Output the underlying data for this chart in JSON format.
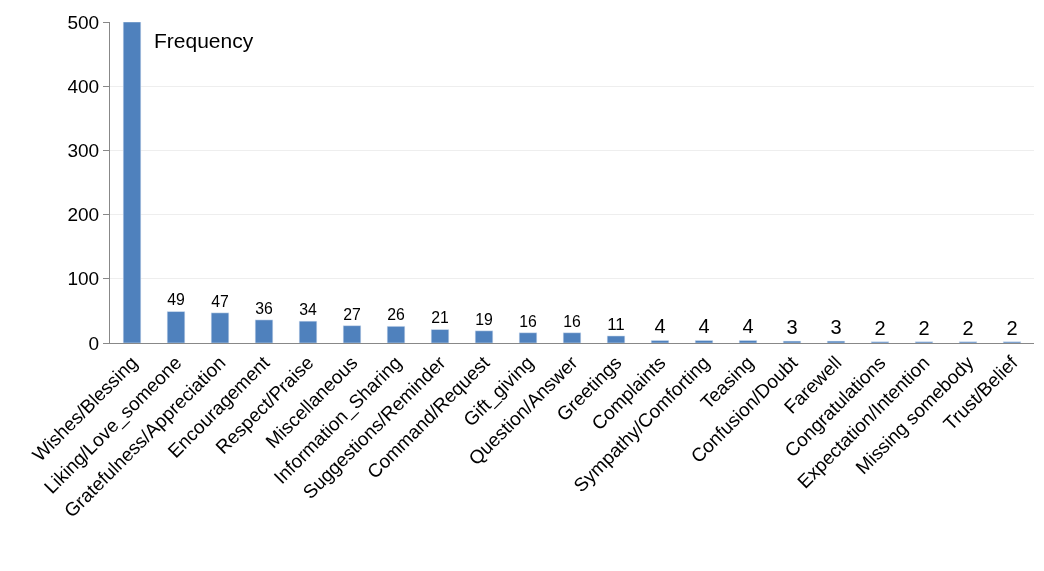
{
  "chart_data": {
    "type": "bar",
    "categories": [
      "Wishes/Blessing",
      "Liking/Love_someone",
      "Gratefulness/Appreciation",
      "Encouragement",
      "Respect/Praise",
      "Miscellaneous",
      "Information_Sharing",
      "Suggestions/Reminder",
      "Command/Request",
      "Gift_giving",
      "Question/Answer",
      "Greetings",
      "Complaints",
      "Sympathy/Comforting",
      "Teasing",
      "Confusion/Doubt",
      "Farewell",
      "Congratulations",
      "Expectation/Intention",
      "Missing somebody",
      "Trust/Belief"
    ],
    "values": [
      500,
      49,
      47,
      36,
      34,
      27,
      26,
      21,
      19,
      16,
      16,
      11,
      4,
      4,
      4,
      3,
      3,
      2,
      2,
      2,
      2
    ],
    "value_labels": [
      null,
      "49",
      "47",
      "36",
      "34",
      "27",
      "26",
      "21",
      "19",
      "16",
      "16",
      "11",
      "4",
      "4",
      "4",
      "3",
      "3",
      "2",
      "2",
      "2",
      "2"
    ],
    "color": "#4f81bd",
    "ylim": [
      0,
      500
    ],
    "yticks": [
      0,
      100,
      200,
      300,
      400,
      500
    ],
    "grid": "y",
    "annotations": [
      "Frequency"
    ]
  }
}
